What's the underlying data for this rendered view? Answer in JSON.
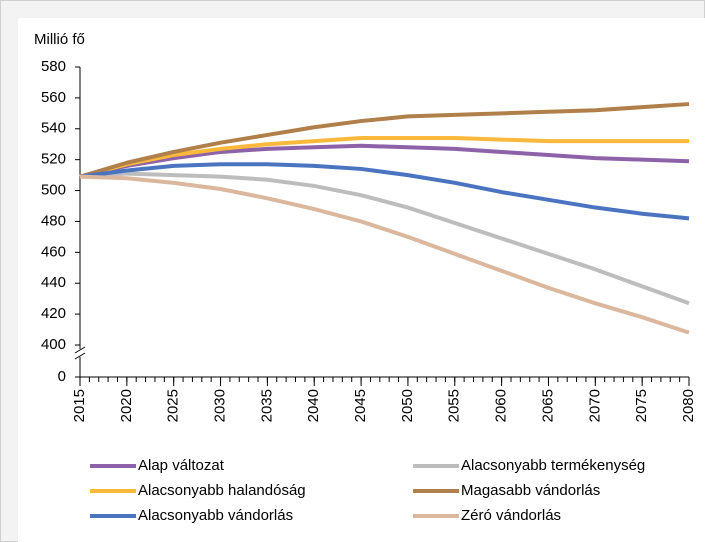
{
  "chart_data": {
    "type": "line",
    "y_axis_label": "Millió fő",
    "x": [
      2015,
      2020,
      2025,
      2030,
      2035,
      2040,
      2045,
      2050,
      2055,
      2060,
      2065,
      2070,
      2075,
      2080
    ],
    "series": [
      {
        "name": "Alap változat",
        "color": "#8e62a8",
        "values": [
          509,
          516,
          521,
          525,
          527,
          528,
          529,
          528,
          527,
          525,
          523,
          521,
          520,
          519
        ]
      },
      {
        "name": "Alacsonyabb termékenység",
        "color": "#bdbdbd",
        "values": [
          509,
          511,
          510,
          509,
          507,
          503,
          497,
          489,
          479,
          469,
          459,
          449,
          438,
          427
        ]
      },
      {
        "name": "Alacsonyabb halandóság",
        "color": "#fbb93c",
        "values": [
          509,
          517,
          523,
          527,
          530,
          532,
          534,
          534,
          534,
          533,
          532,
          532,
          532,
          532
        ]
      },
      {
        "name": "Magasabb vándorlás",
        "color": "#b07f4a",
        "values": [
          509,
          518,
          525,
          531,
          536,
          541,
          545,
          548,
          549,
          550,
          551,
          552,
          554,
          556
        ]
      },
      {
        "name": "Alacsonyabb vándorlás",
        "color": "#4a74c0",
        "values": [
          509,
          513,
          516,
          517,
          517,
          516,
          514,
          510,
          505,
          499,
          494,
          489,
          485,
          482
        ]
      },
      {
        "name": "Zéró vándorlás",
        "color": "#dbb79d",
        "values": [
          509,
          508,
          505,
          501,
          495,
          488,
          480,
          470,
          459,
          448,
          437,
          427,
          418,
          408
        ]
      }
    ],
    "xlim": [
      2015,
      2080
    ],
    "xticks": [
      2015,
      2020,
      2025,
      2030,
      2035,
      2040,
      2045,
      2050,
      2055,
      2060,
      2065,
      2070,
      2075,
      2080
    ],
    "ylim": [
      400,
      580
    ],
    "yticks": [
      0,
      400,
      420,
      440,
      460,
      480,
      500,
      520,
      540,
      560,
      580
    ],
    "y_axis_break": true,
    "grid": false,
    "legend": "bottom"
  }
}
